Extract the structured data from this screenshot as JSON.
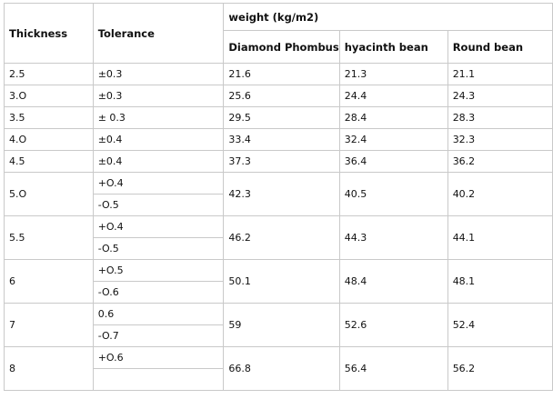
{
  "headers": {
    "thickness": "Thickness",
    "tolerance": "Tolerance",
    "weight_group": "weight (kg/m2)",
    "diamond": "Diamond Phombus",
    "hyacinth": "hyacinth bean",
    "round": "Round bean"
  },
  "single_rows": [
    {
      "thickness": "2.5",
      "tolerance": "±0.3",
      "diamond": "21.6",
      "hyacinth": "21.3",
      "round": "21.1"
    },
    {
      "thickness": "3.O",
      "tolerance": "±0.3",
      "diamond": "25.6",
      "hyacinth": "24.4",
      "round": "24.3"
    },
    {
      "thickness": "3.5",
      "tolerance": "± 0.3",
      "diamond": "29.5",
      "hyacinth": "28.4",
      "round": "28.3"
    },
    {
      "thickness": "4.O",
      "tolerance": "±0.4",
      "diamond": "33.4",
      "hyacinth": "32.4",
      "round": "32.3"
    },
    {
      "thickness": "4.5",
      "tolerance": "±0.4",
      "diamond": "37.3",
      "hyacinth": "36.4",
      "round": "36.2"
    }
  ],
  "split_rows": [
    {
      "thickness": "5.O",
      "tol_upper": "+O.4",
      "tol_lower": "-O.5",
      "diamond": "42.3",
      "hyacinth": "40.5",
      "round": "40.2"
    },
    {
      "thickness": "5.5",
      "tol_upper": "+O.4",
      "tol_lower": "-O.5",
      "diamond": "46.2",
      "hyacinth": "44.3",
      "round": "44.1"
    },
    {
      "thickness": "6",
      "tol_upper": "+O.5",
      "tol_lower": "-O.6",
      "diamond": "50.1",
      "hyacinth": "48.4",
      "round": "48.1"
    },
    {
      "thickness": "7",
      "tol_upper": "0.6",
      "tol_lower": "-O.7",
      "diamond": "59",
      "hyacinth": "52.6",
      "round": "52.4"
    },
    {
      "thickness": "8",
      "tol_upper": "+O.6",
      "tol_lower": "",
      "diamond": "66.8",
      "hyacinth": "56.4",
      "round": "56.2"
    }
  ]
}
